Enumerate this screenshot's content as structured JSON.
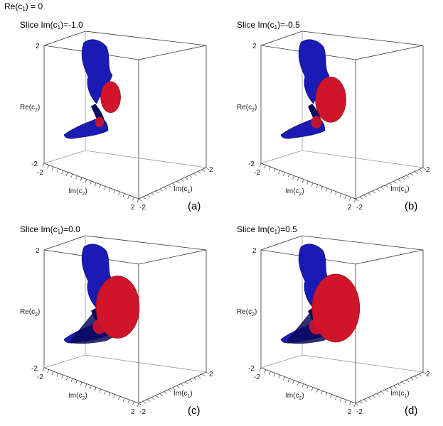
{
  "figure": {
    "header": {
      "label": "Re(c",
      "sub": "1",
      "suffix": ") = 0"
    },
    "axes": {
      "vertical": {
        "label": "Re(c",
        "sub": "2",
        "suffix": ")",
        "top_tick": "2",
        "bottom_tick": "-2"
      },
      "depth": {
        "label": "Im(c",
        "sub": "2",
        "suffix": ")",
        "start_tick": "-2",
        "end_tick": "2"
      },
      "horizontal": {
        "label": "Im(c",
        "sub": "1",
        "suffix": ")",
        "start_tick": "-2",
        "end_tick": "2"
      }
    },
    "panels": [
      {
        "id": "a",
        "title_prefix": "Slice Im(c",
        "title_sub": "1",
        "title_suffix": ")=-1.0",
        "letter": "(a)",
        "slice_value": -1.0,
        "red_extent": 0.2
      },
      {
        "id": "b",
        "title_prefix": "Slice Im(c",
        "title_sub": "1",
        "title_suffix": ")=-0.5",
        "letter": "(b)",
        "slice_value": -0.5,
        "red_extent": 0.45
      },
      {
        "id": "c",
        "title_prefix": "Slice Im(c",
        "title_sub": "1",
        "title_suffix": ")=0.0",
        "letter": "(c)",
        "slice_value": 0.0,
        "red_extent": 0.75
      },
      {
        "id": "d",
        "title_prefix": "Slice Im(c",
        "title_sub": "1",
        "title_suffix": ")=0.5",
        "letter": "(d)",
        "slice_value": 0.5,
        "red_extent": 0.85
      }
    ],
    "colors": {
      "surface_blue": "#1a1ab4",
      "surface_dark": "#0a0a5a",
      "surface_red": "#d0142a",
      "box_line": "#333333"
    }
  }
}
